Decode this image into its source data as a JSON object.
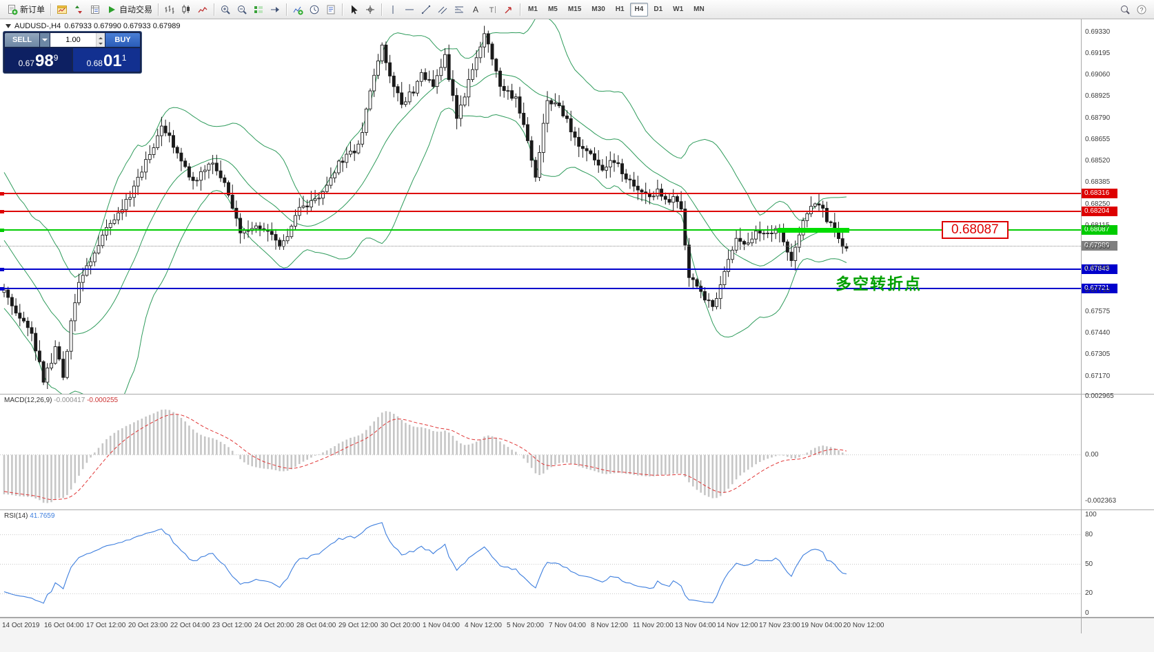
{
  "window": {
    "symbol_period": "AUDUSD-,H4",
    "ohlc": "0.67933 0.67990 0.67933 0.67989"
  },
  "toolbar": {
    "groups": [
      {
        "items": [
          {
            "name": "new-order-button",
            "icon": "new-order-icon",
            "label": "新订单"
          }
        ]
      },
      {
        "items": [
          {
            "name": "chart-window-button",
            "icon": "chart-window-icon"
          },
          {
            "name": "market-watch-button",
            "icon": "quotes-icon"
          },
          {
            "name": "data-window-button",
            "icon": "data-window-icon"
          },
          {
            "name": "autotrading-button",
            "icon": "autotrading-icon",
            "label": "自动交易"
          }
        ]
      },
      {
        "items": [
          {
            "name": "bar-chart-button",
            "icon": "bars-icon"
          },
          {
            "name": "candlestick-button",
            "icon": "candles-icon"
          },
          {
            "name": "line-chart-button",
            "icon": "line-chart-icon"
          }
        ]
      },
      {
        "items": [
          {
            "name": "zoom-in-button",
            "icon": "zoom-in-icon"
          },
          {
            "name": "zoom-out-button",
            "icon": "zoom-out-icon"
          },
          {
            "name": "auto-scroll-button",
            "icon": "auto-scroll-icon"
          },
          {
            "name": "chart-shift-button",
            "icon": "chart-shift-icon"
          }
        ]
      },
      {
        "items": [
          {
            "name": "indicators-button",
            "icon": "indicators-icon"
          },
          {
            "name": "periods-button",
            "icon": "periods-icon"
          },
          {
            "name": "templates-button",
            "icon": "templates-icon"
          }
        ]
      },
      {
        "items": [
          {
            "name": "cursor-button",
            "icon": "cursor-icon"
          },
          {
            "name": "crosshair-button",
            "icon": "crosshair-icon"
          }
        ]
      },
      {
        "items": [
          {
            "name": "vertical-line-button",
            "icon": "vertical-line-icon"
          },
          {
            "name": "horizontal-line-button",
            "icon": "horizontal-line-icon"
          },
          {
            "name": "trendline-button",
            "icon": "trendline-icon"
          },
          {
            "name": "channel-button",
            "icon": "channel-icon"
          },
          {
            "name": "fibonacci-button",
            "icon": "fibonacci-icon"
          },
          {
            "name": "text-button",
            "icon": "text-icon"
          },
          {
            "name": "label-button",
            "icon": "label-icon"
          },
          {
            "name": "arrows-button",
            "icon": "arrows-icon"
          }
        ]
      }
    ],
    "timeframes": [
      "M1",
      "M5",
      "M15",
      "M30",
      "H1",
      "H4",
      "D1",
      "W1",
      "MN"
    ],
    "active_timeframe": "H4",
    "right_items": [
      {
        "name": "search-button",
        "icon": "search-icon"
      },
      {
        "name": "help-button",
        "icon": "help-icon"
      }
    ]
  },
  "trade_panel": {
    "sell_label": "SELL",
    "buy_label": "BUY",
    "volume_value": "1.00",
    "sell_price_prefix": "0.67",
    "sell_price_big": "98",
    "sell_price_sup": "9",
    "buy_price_prefix": "0.68",
    "buy_price_big": "01",
    "buy_price_sup": "1"
  },
  "chart": {
    "price_axis_labels": [
      "0.69330",
      "0.69195",
      "0.69060",
      "0.68925",
      "0.68790",
      "0.68655",
      "0.68520",
      "0.68385",
      "0.68250",
      "0.68115",
      "0.67980",
      "0.67845",
      "0.67710",
      "0.67575",
      "0.67440",
      "0.67305",
      "0.67170"
    ],
    "levels": [
      {
        "price": 0.68316,
        "label": "0.68316",
        "color": "#dd0000"
      },
      {
        "price": 0.68204,
        "label": "0.68204",
        "color": "#dd0000"
      },
      {
        "price": 0.68087,
        "label": "0.68087",
        "color": "#00cc00",
        "thick_from_x": 1128,
        "thick_to_x": 1232
      },
      {
        "price": 0.67843,
        "label": "0.67843",
        "color": "#0000cc"
      },
      {
        "price": 0.67721,
        "label": "0.67721",
        "color": "#0000cc"
      }
    ],
    "current_price": "0.67989",
    "price_tag_label": "0.68087",
    "annotation": "多空转折点"
  },
  "macd": {
    "name": "MACD(12,26,9)",
    "value_main": "-0.000417",
    "value_signal": "-0.000255",
    "axis_labels": [
      {
        "value": 0.002965,
        "label": "0.002965"
      },
      {
        "value": 0,
        "label": "0.00"
      },
      {
        "value": -0.002363,
        "label": "-0.002363"
      }
    ]
  },
  "rsi": {
    "name": "RSI(14)",
    "value": "41.7659",
    "axis_labels": [
      {
        "value": 100,
        "label": "100"
      },
      {
        "value": 80,
        "label": "80"
      },
      {
        "value": 50,
        "label": "50"
      },
      {
        "value": 20,
        "label": "20"
      },
      {
        "value": 0,
        "label": "0"
      }
    ],
    "levels": [
      80,
      50,
      20
    ]
  },
  "time_axis": [
    "14 Oct 2019",
    "16 Oct 04:00",
    "17 Oct 12:00",
    "20 Oct 23:00",
    "22 Oct 04:00",
    "23 Oct 12:00",
    "24 Oct 20:00",
    "28 Oct 04:00",
    "29 Oct 12:00",
    "30 Oct 20:00",
    "1 Nov 04:00",
    "4 Nov 12:00",
    "5 Nov 20:00",
    "7 Nov 04:00",
    "8 Nov 12:00",
    "11 Nov 20:00",
    "13 Nov 04:00",
    "14 Nov 12:00",
    "17 Nov 23:00",
    "19 Nov 04:00",
    "20 Nov 12:00"
  ],
  "chart_data": {
    "type": "candlestick",
    "symbol": "AUDUSD",
    "timeframe": "H4",
    "candle_count": 215,
    "y_range": [
      0.6706,
      0.6941
    ],
    "indicators": [
      {
        "type": "bollinger",
        "period": 20,
        "deviation": 2
      },
      {
        "type": "macd",
        "fast": 12,
        "slow": 26,
        "signal": 9,
        "last_main": -0.000417,
        "last_signal": -0.000255
      },
      {
        "type": "rsi",
        "period": 14,
        "last_value": 41.7659
      }
    ],
    "price_path": [
      [
        0,
        0.677
      ],
      [
        4,
        0.6754
      ],
      [
        7,
        0.6743
      ],
      [
        10,
        0.67145
      ],
      [
        12,
        0.6726
      ],
      [
        13,
        0.6734
      ],
      [
        15,
        0.67175
      ],
      [
        17,
        0.6752
      ],
      [
        19,
        0.6776
      ],
      [
        22,
        0.679
      ],
      [
        25,
        0.6806
      ],
      [
        30,
        0.6821
      ],
      [
        35,
        0.6846
      ],
      [
        40,
        0.6872
      ],
      [
        42,
        0.6866
      ],
      [
        44,
        0.6858
      ],
      [
        48,
        0.6838
      ],
      [
        52,
        0.6852
      ],
      [
        55,
        0.6843
      ],
      [
        57,
        0.6831
      ],
      [
        60,
        0.6806
      ],
      [
        63,
        0.6812
      ],
      [
        66,
        0.6811
      ],
      [
        70,
        0.6797
      ],
      [
        73,
        0.681
      ],
      [
        75,
        0.6822
      ],
      [
        80,
        0.6829
      ],
      [
        85,
        0.6851
      ],
      [
        90,
        0.6861
      ],
      [
        93,
        0.6894
      ],
      [
        96,
        0.6926
      ],
      [
        98,
        0.6906
      ],
      [
        101,
        0.6888
      ],
      [
        104,
        0.6896
      ],
      [
        106,
        0.6906
      ],
      [
        109,
        0.69
      ],
      [
        112,
        0.6918
      ],
      [
        115,
        0.688
      ],
      [
        118,
        0.6901
      ],
      [
        122,
        0.6931
      ],
      [
        124,
        0.6916
      ],
      [
        126,
        0.6898
      ],
      [
        128,
        0.6894
      ],
      [
        130,
        0.6891
      ],
      [
        133,
        0.6866
      ],
      [
        135,
        0.6842
      ],
      [
        138,
        0.6891
      ],
      [
        141,
        0.6888
      ],
      [
        144,
        0.6871
      ],
      [
        146,
        0.6861
      ],
      [
        149,
        0.6855
      ],
      [
        152,
        0.6848
      ],
      [
        155,
        0.6852
      ],
      [
        158,
        0.6841
      ],
      [
        161,
        0.6835
      ],
      [
        164,
        0.6829
      ],
      [
        166,
        0.6833
      ],
      [
        168,
        0.6826
      ],
      [
        170,
        0.6828
      ],
      [
        172,
        0.6822
      ],
      [
        174,
        0.6781
      ],
      [
        176,
        0.6772
      ],
      [
        178,
        0.6766
      ],
      [
        180,
        0.6759
      ],
      [
        181,
        0.6768
      ],
      [
        183,
        0.6783
      ],
      [
        186,
        0.6803
      ],
      [
        188,
        0.68
      ],
      [
        191,
        0.6808
      ],
      [
        194,
        0.6806
      ],
      [
        196,
        0.6811
      ],
      [
        198,
        0.6801
      ],
      [
        200,
        0.6789
      ],
      [
        202,
        0.6804
      ],
      [
        204,
        0.6821
      ],
      [
        206,
        0.6827
      ],
      [
        207,
        0.6825
      ],
      [
        209,
        0.6816
      ],
      [
        211,
        0.6809
      ],
      [
        213,
        0.68
      ],
      [
        214,
        0.67989
      ]
    ]
  }
}
